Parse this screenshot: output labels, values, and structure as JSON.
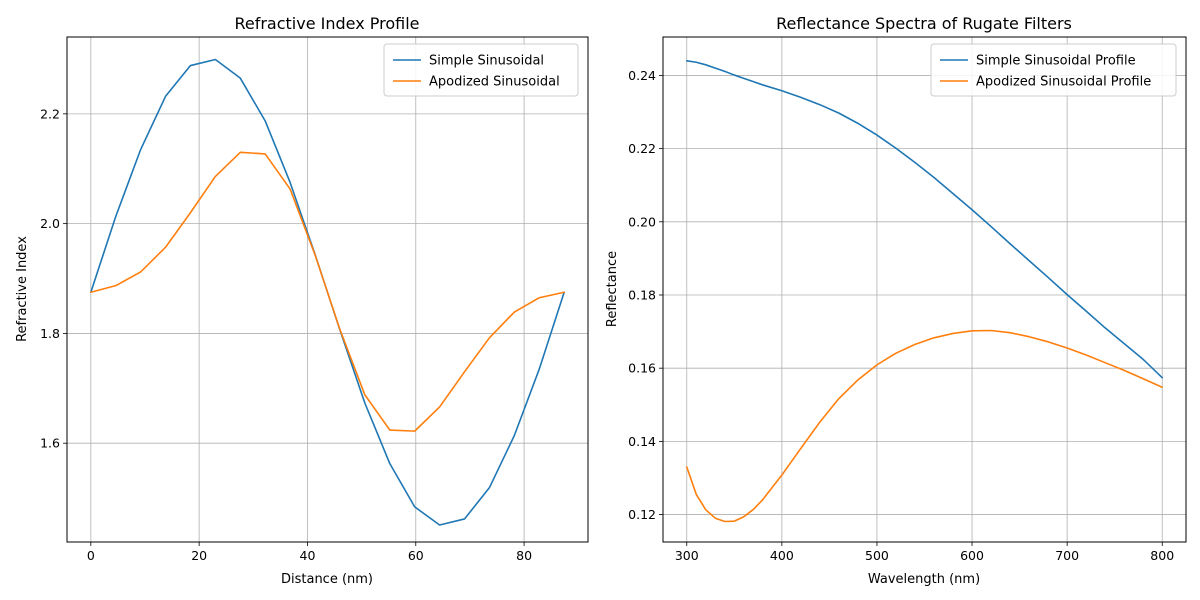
{
  "colors": {
    "series_1": "#1f77b4",
    "series_2": "#ff7f0e"
  },
  "chart_data": [
    {
      "type": "line",
      "title": "Refractive Index Profile",
      "xlabel": "Distance (nm)",
      "ylabel": "Refractive Index",
      "xlim": [
        -4.4,
        91.8
      ],
      "ylim": [
        1.42,
        2.34
      ],
      "xticks": [
        0,
        20,
        40,
        60,
        80
      ],
      "yticks": [
        1.6,
        1.8,
        2.0,
        2.2
      ],
      "xtick_labels": [
        "0",
        "20",
        "40",
        "60",
        "80"
      ],
      "ytick_labels": [
        "1.6",
        "1.8",
        "2.0",
        "2.2"
      ],
      "grid": true,
      "legend": "top-right",
      "x": [
        0,
        4.6,
        9.2,
        13.8,
        18.4,
        23.0,
        27.6,
        32.2,
        36.8,
        41.4,
        46.0,
        50.6,
        55.2,
        59.8,
        64.4,
        69.0,
        73.6,
        78.2,
        82.8,
        87.4
      ],
      "series": [
        {
          "name": "Simple Sinusoidal",
          "values": [
            1.875,
            2.013,
            2.135,
            2.232,
            2.288,
            2.299,
            2.265,
            2.187,
            2.075,
            1.944,
            1.806,
            1.673,
            1.563,
            1.484,
            1.451,
            1.462,
            1.519,
            1.614,
            1.735,
            1.875
          ]
        },
        {
          "name": "Apodized Sinusoidal",
          "values": [
            1.875,
            1.887,
            1.912,
            1.957,
            2.02,
            2.086,
            2.13,
            2.127,
            2.063,
            1.943,
            1.807,
            1.688,
            1.624,
            1.622,
            1.666,
            1.73,
            1.792,
            1.839,
            1.865,
            1.875
          ]
        }
      ]
    },
    {
      "type": "line",
      "title": "Reflectance Spectra of Rugate Filters",
      "xlabel": "Wavelength (nm)",
      "ylabel": "Reflectance",
      "xlim": [
        275,
        825
      ],
      "ylim": [
        0.1125,
        0.2505
      ],
      "xticks": [
        300,
        400,
        500,
        600,
        700,
        800
      ],
      "yticks": [
        0.12,
        0.14,
        0.16,
        0.18,
        0.2,
        0.22,
        0.24
      ],
      "xtick_labels": [
        "300",
        "400",
        "500",
        "600",
        "700",
        "800"
      ],
      "ytick_labels": [
        "0.12",
        "0.14",
        "0.16",
        "0.18",
        "0.20",
        "0.22",
        "0.24"
      ],
      "grid": true,
      "legend": "top-right",
      "x": [
        300,
        310,
        320,
        330,
        340,
        350,
        360,
        370,
        380,
        400,
        420,
        440,
        460,
        480,
        500,
        520,
        540,
        560,
        580,
        600,
        620,
        640,
        660,
        680,
        700,
        720,
        740,
        760,
        780,
        800
      ],
      "series": [
        {
          "name": "Simple Sinusoidal Profile",
          "values": [
            0.244,
            0.2436,
            0.2429,
            0.242,
            0.2411,
            0.2401,
            0.2392,
            0.2383,
            0.2374,
            0.2358,
            0.234,
            0.232,
            0.2297,
            0.2269,
            0.2237,
            0.2201,
            0.2162,
            0.2121,
            0.2077,
            0.2033,
            0.1987,
            0.194,
            0.1894,
            0.1848,
            0.1801,
            0.1756,
            0.171,
            0.1667,
            0.1624,
            0.1574
          ]
        },
        {
          "name": "Apodized Sinusoidal Profile",
          "values": [
            0.133,
            0.1255,
            0.1213,
            0.119,
            0.1181,
            0.1182,
            0.1194,
            0.1214,
            0.1241,
            0.1308,
            0.1381,
            0.1453,
            0.1517,
            0.1568,
            0.1609,
            0.1641,
            0.1665,
            0.1683,
            0.1695,
            0.1702,
            0.1703,
            0.1697,
            0.1686,
            0.1672,
            0.1655,
            0.1636,
            0.1615,
            0.1594,
            0.1571,
            0.1548
          ]
        }
      ]
    }
  ]
}
